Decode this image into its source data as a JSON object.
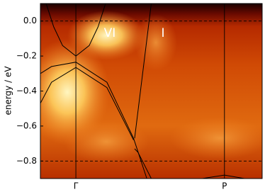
{
  "chart_data": {
    "type": "line",
    "ylabel": "energy / eV",
    "xlim": [
      0,
      1
    ],
    "ylim": [
      -0.9,
      0.1
    ],
    "xticks": [
      {
        "value": 0.16,
        "label": "Γ"
      },
      {
        "value": 0.83,
        "label": "P"
      }
    ],
    "yticks": [
      {
        "value": 0,
        "label": "0.0"
      },
      {
        "value": -0.2,
        "label": "−0.2"
      },
      {
        "value": -0.4,
        "label": "−0.4"
      },
      {
        "value": -0.6,
        "label": "−0.6"
      },
      {
        "value": -0.8,
        "label": "−0.8"
      }
    ],
    "hlines": [
      0,
      -0.8
    ],
    "annotations": [
      "VI",
      "I"
    ],
    "series": [
      {
        "color": "#000000",
        "x": [
          0.026,
          0.06,
          0.1,
          0.16,
          0.22,
          0.26,
          0.294
        ],
        "values": [
          0.1,
          -0.033,
          -0.14,
          -0.2,
          -0.14,
          -0.033,
          0.1
        ]
      },
      {
        "color": "#000000",
        "x": [
          0,
          0.05,
          0.16,
          0.3,
          0.42,
          0.48
        ],
        "values": [
          -0.3,
          -0.26,
          -0.235,
          -0.35,
          -0.67,
          -0.9
        ]
      },
      {
        "color": "#000000",
        "x": [
          0,
          0.05,
          0.16,
          0.3,
          0.42
        ],
        "values": [
          -0.47,
          -0.35,
          -0.265,
          -0.38,
          -0.68
        ]
      },
      {
        "color": "#000000",
        "x": [
          0.5,
          0.425
        ],
        "values": [
          0.1,
          -0.67
        ]
      },
      {
        "color": "#000000",
        "x": [
          0.425,
          0.44,
          0.5
        ],
        "values": [
          -0.73,
          -0.75,
          -0.9
        ]
      },
      {
        "color": "#000000",
        "x": [
          0.73,
          0.83,
          0.92
        ],
        "values": [
          -0.9,
          -0.88,
          -0.9
        ]
      }
    ]
  }
}
